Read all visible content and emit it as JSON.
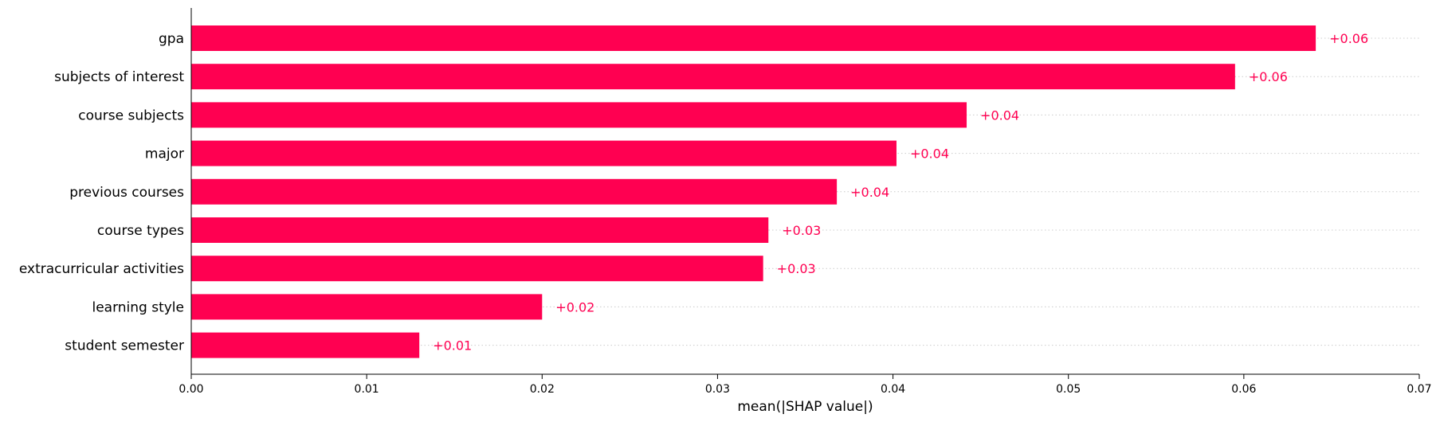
{
  "chart_data": {
    "type": "bar",
    "orientation": "horizontal",
    "title": "",
    "xlabel": "mean(|SHAP value|)",
    "ylabel": "",
    "xlim": [
      0,
      0.07
    ],
    "xticks": [
      0.0,
      0.01,
      0.02,
      0.03,
      0.04,
      0.05,
      0.06,
      0.07
    ],
    "xtick_labels": [
      "0.00",
      "0.01",
      "0.02",
      "0.03",
      "0.04",
      "0.05",
      "0.06",
      "0.07"
    ],
    "grid": false,
    "bar_color": "#ff0051",
    "value_label_color": "#ff0051",
    "categories": [
      "gpa",
      "subjects of interest",
      "course subjects",
      "major",
      "previous courses",
      "course types",
      "extracurricular activities",
      "learning style",
      "student semester"
    ],
    "values": [
      0.0641,
      0.0595,
      0.0442,
      0.0402,
      0.0368,
      0.0329,
      0.0326,
      0.02,
      0.013
    ],
    "value_labels": [
      "+0.06",
      "+0.06",
      "+0.04",
      "+0.04",
      "+0.04",
      "+0.03",
      "+0.03",
      "+0.02",
      "+0.01"
    ]
  }
}
